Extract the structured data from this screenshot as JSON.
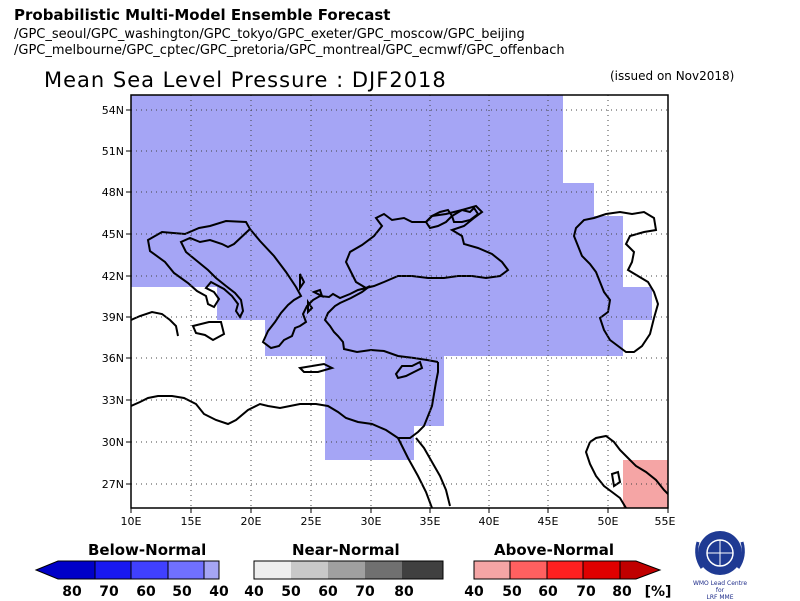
{
  "header": {
    "title": "Probabilistic Multi-Model Ensemble Forecast",
    "models_line1": "/GPC_seoul/GPC_washington/GPC_tokyo/GPC_exeter/GPC_moscow/GPC_beijing",
    "models_line2": "/GPC_melbourne/GPC_cptec/GPC_pretoria/GPC_montreal/GPC_ecmwf/GPC_offenbach"
  },
  "map": {
    "title": "Mean Sea Level Pressure : DJF2018",
    "issued": "(issued on Nov2018)",
    "lat_labels": [
      "54N",
      "51N",
      "48N",
      "45N",
      "42N",
      "39N",
      "36N",
      "33N",
      "30N",
      "27N"
    ],
    "lon_labels": [
      "10E",
      "15E",
      "20E",
      "25E",
      "30E",
      "35E",
      "40E",
      "45E",
      "50E",
      "55E"
    ],
    "colors": {
      "below_normal_40": "#a5a5f5",
      "above_normal_40": "#f5a5a5",
      "coast": "#000000"
    }
  },
  "legend": {
    "below": {
      "title": "Below-Normal",
      "labels": [
        "80",
        "70",
        "60",
        "50",
        "40"
      ],
      "colors": [
        "#0000c8",
        "#1818f0",
        "#4040ff",
        "#7070ff",
        "#a5a5f5"
      ]
    },
    "near": {
      "title": "Near-Normal",
      "labels": [
        "40",
        "50",
        "60",
        "70",
        "80"
      ],
      "colors": [
        "#eeeeee",
        "#c8c8c8",
        "#a0a0a0",
        "#707070",
        "#404040"
      ]
    },
    "above": {
      "title": "Above-Normal",
      "labels": [
        "40",
        "50",
        "60",
        "70",
        "80"
      ],
      "colors": [
        "#f5a5a5",
        "#ff6060",
        "#ff2020",
        "#e00000",
        "#c00000"
      ]
    },
    "unit": "[%]"
  },
  "logo": {
    "text_line1": "WMO Lead Centre for",
    "text_line2": "LRF MME"
  }
}
